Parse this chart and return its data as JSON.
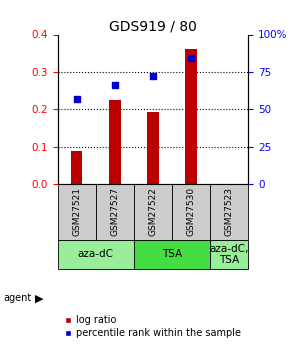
{
  "title": "GDS919 / 80",
  "samples": [
    "GSM27521",
    "GSM27527",
    "GSM27522",
    "GSM27530",
    "GSM27523"
  ],
  "log_ratio": [
    0.09,
    0.225,
    0.193,
    0.362,
    0.0
  ],
  "percentile_rank": [
    57,
    66.5,
    72.5,
    84,
    0
  ],
  "bar_color": "#bb0000",
  "square_color": "#0000cc",
  "ylim_left": [
    0,
    0.4
  ],
  "ylim_right": [
    0,
    100
  ],
  "yticks_left": [
    0,
    0.1,
    0.2,
    0.3,
    0.4
  ],
  "yticks_right": [
    0,
    25,
    50,
    75,
    100
  ],
  "ytick_right_labels": [
    "0",
    "25",
    "50",
    "75",
    "100%"
  ],
  "sample_bg_color": "#cccccc",
  "agent_defs": [
    {
      "label": "aza-dC",
      "start": 0,
      "end": 1,
      "color": "#99ee99"
    },
    {
      "label": "TSA",
      "start": 2,
      "end": 3,
      "color": "#44dd44"
    },
    {
      "label": "aza-dC,\nTSA",
      "start": 4,
      "end": 4,
      "color": "#99ee99"
    }
  ],
  "legend_items": [
    "log ratio",
    "percentile rank within the sample"
  ],
  "bar_width": 0.3,
  "title_fontsize": 10,
  "tick_fontsize": 7.5,
  "sample_fontsize": 6.5,
  "agent_fontsize": 7.5,
  "legend_fontsize": 7
}
